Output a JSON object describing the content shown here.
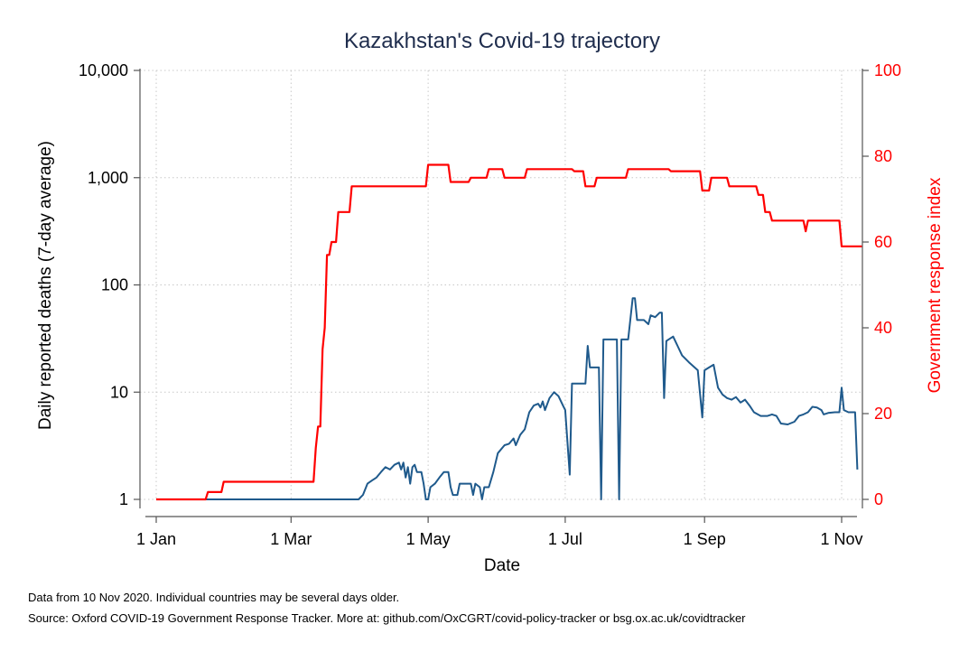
{
  "chart_data": {
    "type": "line",
    "title": "Kazakhstan's Covid-19 trajectory",
    "xlabel": "Date",
    "ylabel_left": "Daily reported deaths (7-day average)",
    "ylabel_right": "Government response index",
    "x_ticks": [
      "1 Jan",
      "1 Mar",
      "1 May",
      "1 Jul",
      "1 Sep",
      "1 Nov"
    ],
    "x_tick_dates": [
      "2020-01-01",
      "2020-03-01",
      "2020-05-01",
      "2020-07-01",
      "2020-09-01",
      "2020-11-01"
    ],
    "xlim": [
      "2020-01-01",
      "2020-11-10"
    ],
    "y_left_scale": "log",
    "y_left_ticks": [
      "1",
      "10",
      "100",
      "1,000",
      "10,000"
    ],
    "y_left_tick_values": [
      1,
      10,
      100,
      1000,
      10000
    ],
    "ylim_left": [
      1,
      10000
    ],
    "y_right_ticks": [
      "0",
      "20",
      "40",
      "60",
      "80",
      "100"
    ],
    "y_right_tick_values": [
      0,
      20,
      40,
      60,
      80,
      100
    ],
    "ylim_right": [
      0,
      100
    ],
    "grid": true,
    "colors": {
      "deaths": "#1f5a8c",
      "response": "#ff0000",
      "title": "#1f2d4d"
    },
    "series": [
      {
        "axis": "left",
        "color": "#1f5a8c",
        "points": [
          [
            "2020-01-01",
            1
          ],
          [
            "2020-03-31",
            1
          ],
          [
            "2020-04-02",
            1.1
          ],
          [
            "2020-04-04",
            1.4
          ],
          [
            "2020-04-06",
            1.5
          ],
          [
            "2020-04-08",
            1.6
          ],
          [
            "2020-04-10",
            1.8
          ],
          [
            "2020-04-12",
            2.0
          ],
          [
            "2020-04-14",
            1.9
          ],
          [
            "2020-04-16",
            2.1
          ],
          [
            "2020-04-18",
            2.2
          ],
          [
            "2020-04-19",
            1.9
          ],
          [
            "2020-04-20",
            2.2
          ],
          [
            "2020-04-21",
            1.6
          ],
          [
            "2020-04-22",
            2.0
          ],
          [
            "2020-04-23",
            1.4
          ],
          [
            "2020-04-24",
            2.0
          ],
          [
            "2020-04-25",
            2.1
          ],
          [
            "2020-04-26",
            1.8
          ],
          [
            "2020-04-28",
            1.8
          ],
          [
            "2020-04-29",
            1.4
          ],
          [
            "2020-04-30",
            1.0
          ],
          [
            "2020-05-01",
            1.0
          ],
          [
            "2020-05-02",
            1.3
          ],
          [
            "2020-05-04",
            1.4
          ],
          [
            "2020-05-06",
            1.6
          ],
          [
            "2020-05-08",
            1.8
          ],
          [
            "2020-05-10",
            1.8
          ],
          [
            "2020-05-11",
            1.3
          ],
          [
            "2020-05-12",
            1.1
          ],
          [
            "2020-05-14",
            1.1
          ],
          [
            "2020-05-15",
            1.4
          ],
          [
            "2020-05-20",
            1.4
          ],
          [
            "2020-05-21",
            1.1
          ],
          [
            "2020-05-22",
            1.4
          ],
          [
            "2020-05-24",
            1.3
          ],
          [
            "2020-05-25",
            1.0
          ],
          [
            "2020-05-26",
            1.3
          ],
          [
            "2020-05-28",
            1.3
          ],
          [
            "2020-05-30",
            1.8
          ],
          [
            "2020-06-01",
            2.7
          ],
          [
            "2020-06-04",
            3.2
          ],
          [
            "2020-06-06",
            3.3
          ],
          [
            "2020-06-08",
            3.7
          ],
          [
            "2020-06-09",
            3.2
          ],
          [
            "2020-06-11",
            4.0
          ],
          [
            "2020-06-13",
            4.5
          ],
          [
            "2020-06-15",
            6.5
          ],
          [
            "2020-06-17",
            7.5
          ],
          [
            "2020-06-19",
            7.8
          ],
          [
            "2020-06-20",
            7.2
          ],
          [
            "2020-06-21",
            8.2
          ],
          [
            "2020-06-22",
            6.8
          ],
          [
            "2020-06-24",
            8.8
          ],
          [
            "2020-06-26",
            10.0
          ],
          [
            "2020-06-28",
            9.2
          ],
          [
            "2020-06-30",
            7.5
          ],
          [
            "2020-07-01",
            6.8
          ],
          [
            "2020-07-03",
            1.7
          ],
          [
            "2020-07-04",
            12
          ],
          [
            "2020-07-10",
            12
          ],
          [
            "2020-07-11",
            27
          ],
          [
            "2020-07-12",
            17
          ],
          [
            "2020-07-16",
            17
          ],
          [
            "2020-07-17",
            1.0
          ],
          [
            "2020-07-18",
            31
          ],
          [
            "2020-07-24",
            31
          ],
          [
            "2020-07-25",
            1.0
          ],
          [
            "2020-07-26",
            31
          ],
          [
            "2020-07-29",
            31
          ],
          [
            "2020-07-31",
            75
          ],
          [
            "2020-08-01",
            75
          ],
          [
            "2020-08-02",
            47
          ],
          [
            "2020-08-05",
            47
          ],
          [
            "2020-08-07",
            43
          ],
          [
            "2020-08-08",
            52
          ],
          [
            "2020-08-10",
            50
          ],
          [
            "2020-08-12",
            55
          ],
          [
            "2020-08-13",
            55
          ],
          [
            "2020-08-14",
            8.8
          ],
          [
            "2020-08-15",
            30
          ],
          [
            "2020-08-18",
            33
          ],
          [
            "2020-08-20",
            27
          ],
          [
            "2020-08-22",
            22
          ],
          [
            "2020-08-25",
            19
          ],
          [
            "2020-08-29",
            16
          ],
          [
            "2020-08-31",
            5.8
          ],
          [
            "2020-09-01",
            16
          ],
          [
            "2020-09-03",
            17
          ],
          [
            "2020-09-05",
            18
          ],
          [
            "2020-09-07",
            11
          ],
          [
            "2020-09-09",
            9.5
          ],
          [
            "2020-09-11",
            8.8
          ],
          [
            "2020-09-13",
            8.5
          ],
          [
            "2020-09-15",
            9.0
          ],
          [
            "2020-09-17",
            8.0
          ],
          [
            "2020-09-19",
            8.5
          ],
          [
            "2020-09-21",
            7.5
          ],
          [
            "2020-09-23",
            6.5
          ],
          [
            "2020-09-26",
            6.0
          ],
          [
            "2020-09-29",
            6.0
          ],
          [
            "2020-10-01",
            6.2
          ],
          [
            "2020-10-03",
            6.0
          ],
          [
            "2020-10-05",
            5.1
          ],
          [
            "2020-10-08",
            5.0
          ],
          [
            "2020-10-11",
            5.3
          ],
          [
            "2020-10-13",
            6.0
          ],
          [
            "2020-10-15",
            6.2
          ],
          [
            "2020-10-17",
            6.5
          ],
          [
            "2020-10-19",
            7.3
          ],
          [
            "2020-10-21",
            7.2
          ],
          [
            "2020-10-23",
            6.8
          ],
          [
            "2020-10-24",
            6.2
          ],
          [
            "2020-10-26",
            6.4
          ],
          [
            "2020-10-29",
            6.5
          ],
          [
            "2020-10-31",
            6.5
          ],
          [
            "2020-11-01",
            11
          ],
          [
            "2020-11-02",
            6.8
          ],
          [
            "2020-11-04",
            6.5
          ],
          [
            "2020-11-07",
            6.5
          ],
          [
            "2020-11-08",
            1.9
          ]
        ]
      },
      {
        "axis": "right",
        "color": "#ff0000",
        "points": [
          [
            "2020-01-01",
            0
          ],
          [
            "2020-01-23",
            0
          ],
          [
            "2020-01-24",
            1.7
          ],
          [
            "2020-01-30",
            1.7
          ],
          [
            "2020-01-31",
            4.1
          ],
          [
            "2020-03-11",
            4.1
          ],
          [
            "2020-03-12",
            12
          ],
          [
            "2020-03-13",
            17
          ],
          [
            "2020-03-14",
            17
          ],
          [
            "2020-03-15",
            35
          ],
          [
            "2020-03-16",
            40
          ],
          [
            "2020-03-17",
            57
          ],
          [
            "2020-03-18",
            57
          ],
          [
            "2020-03-19",
            60
          ],
          [
            "2020-03-21",
            60
          ],
          [
            "2020-03-22",
            67
          ],
          [
            "2020-03-27",
            67
          ],
          [
            "2020-03-28",
            73
          ],
          [
            "2020-04-30",
            73
          ],
          [
            "2020-05-01",
            78
          ],
          [
            "2020-05-10",
            78
          ],
          [
            "2020-05-11",
            74
          ],
          [
            "2020-05-19",
            74
          ],
          [
            "2020-05-20",
            75
          ],
          [
            "2020-05-27",
            75
          ],
          [
            "2020-05-28",
            77
          ],
          [
            "2020-06-03",
            77
          ],
          [
            "2020-06-04",
            75
          ],
          [
            "2020-06-13",
            75
          ],
          [
            "2020-06-14",
            77
          ],
          [
            "2020-07-04",
            77
          ],
          [
            "2020-07-05",
            76.5
          ],
          [
            "2020-07-09",
            76.5
          ],
          [
            "2020-07-10",
            73
          ],
          [
            "2020-07-14",
            73
          ],
          [
            "2020-07-15",
            75
          ],
          [
            "2020-07-28",
            75
          ],
          [
            "2020-07-29",
            77
          ],
          [
            "2020-08-16",
            77
          ],
          [
            "2020-08-17",
            76.5
          ],
          [
            "2020-08-30",
            76.5
          ],
          [
            "2020-08-31",
            72
          ],
          [
            "2020-09-03",
            72
          ],
          [
            "2020-09-04",
            75
          ],
          [
            "2020-09-11",
            75
          ],
          [
            "2020-09-12",
            73
          ],
          [
            "2020-09-24",
            73
          ],
          [
            "2020-09-25",
            71
          ],
          [
            "2020-09-27",
            71
          ],
          [
            "2020-09-28",
            67
          ],
          [
            "2020-09-30",
            67
          ],
          [
            "2020-10-01",
            65
          ],
          [
            "2020-10-15",
            65
          ],
          [
            "2020-10-16",
            62.5
          ],
          [
            "2020-10-17",
            65
          ],
          [
            "2020-10-31",
            65
          ],
          [
            "2020-11-01",
            59
          ],
          [
            "2020-11-10",
            59
          ]
        ]
      }
    ]
  },
  "notes": {
    "line1": "Data from 10 Nov 2020. Individual countries may be several days older.",
    "line2": "Source: Oxford COVID-19 Government Response Tracker. More at: github.com/OxCGRT/covid-policy-tracker or bsg.ox.ac.uk/covidtracker"
  }
}
